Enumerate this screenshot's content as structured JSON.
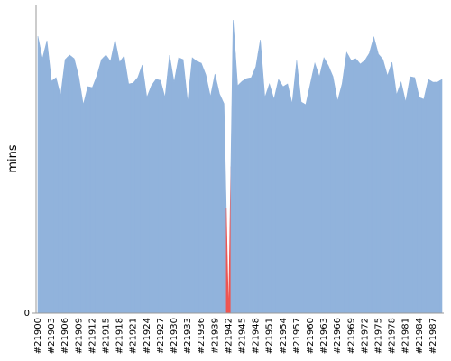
{
  "chart_data": {
    "type": "area",
    "y_label": "mins",
    "categories": [
      "#21900",
      null,
      null,
      "#21903",
      null,
      null,
      "#21906",
      null,
      null,
      "#21909",
      null,
      null,
      "#21912",
      null,
      null,
      "#21915",
      null,
      null,
      "#21918",
      null,
      null,
      "#21921",
      null,
      null,
      "#21924",
      null,
      null,
      "#21927",
      null,
      null,
      "#21930",
      null,
      null,
      "#21933",
      null,
      null,
      "#21936",
      null,
      null,
      "#21939",
      null,
      null,
      "#21942",
      null,
      null,
      "#21945",
      null,
      null,
      "#21948",
      null,
      null,
      "#21951",
      null,
      null,
      "#21954",
      null,
      null,
      "#21957",
      null,
      null,
      "#21960",
      null,
      null,
      "#21963",
      null,
      null,
      "#21966",
      null,
      null,
      "#21969",
      null,
      null,
      "#21972",
      null,
      null,
      "#21975",
      null,
      null,
      "#21978",
      null,
      null,
      "#21981",
      null,
      null,
      "#21984",
      null,
      null,
      "#21987",
      null,
      null
    ],
    "values": [
      30.7,
      28.2,
      30.2,
      25.7,
      26.1,
      24.1,
      28.1,
      28.6,
      28.2,
      26.2,
      23.1,
      25.1,
      25.0,
      26.3,
      28.1,
      28.6,
      27.9,
      30.3,
      27.8,
      28.5,
      25.4,
      25.5,
      26.1,
      27.5,
      23.9,
      25.2,
      25.9,
      25.8,
      23.9,
      28.6,
      25.6,
      28.3,
      28.1,
      23.4,
      28.3,
      27.9,
      27.7,
      26.4,
      24.0,
      26.5,
      24.3,
      23.2,
      0,
      32.5,
      25.2,
      25.7,
      26.0,
      26.1,
      27.3,
      30.3,
      23.9,
      25.4,
      23.7,
      25.9,
      25.1,
      25.4,
      23.2,
      28.0,
      23.4,
      23.1,
      25.4,
      27.7,
      26.2,
      28.3,
      27.4,
      26.2,
      23.5,
      25.4,
      28.9,
      28.0,
      28.2,
      27.6,
      28.0,
      28.8,
      30.6,
      28.7,
      28.1,
      26.3,
      27.8,
      24.2,
      25.6,
      23.4,
      26.2,
      26.1,
      23.9,
      23.7,
      25.9,
      25.6,
      25.6,
      25.9
    ],
    "colors": [
      "#91b3dc",
      "#91b3dc",
      "#91b3dc",
      "#91b3dc",
      "#91b3dc",
      "#91b3dc",
      "#91b3dc",
      "#91b3dc",
      "#91b3dc",
      "#91b3dc",
      "#91b3dc",
      "#91b3dc",
      "#91b3dc",
      "#91b3dc",
      "#91b3dc",
      "#91b3dc",
      "#91b3dc",
      "#91b3dc",
      "#91b3dc",
      "#91b3dc",
      "#91b3dc",
      "#91b3dc",
      "#91b3dc",
      "#91b3dc",
      "#91b3dc",
      "#91b3dc",
      "#91b3dc",
      "#91b3dc",
      "#91b3dc",
      "#91b3dc",
      "#91b3dc",
      "#91b3dc",
      "#91b3dc",
      "#91b3dc",
      "#91b3dc",
      "#91b3dc",
      "#91b3dc",
      "#91b3dc",
      "#91b3dc",
      "#91b3dc",
      "#91b3dc",
      "#91b3dc",
      "#ee5551",
      "#91b3dc",
      "#91b3dc",
      "#91b3dc",
      "#91b3dc",
      "#91b3dc",
      "#91b3dc",
      "#91b3dc",
      "#91b3dc",
      "#91b3dc",
      "#91b3dc",
      "#91b3dc",
      "#91b3dc",
      "#91b3dc",
      "#91b3dc",
      "#91b3dc",
      "#91b3dc",
      "#91b3dc",
      "#91b3dc",
      "#91b3dc",
      "#91b3dc",
      "#91b3dc",
      "#91b3dc",
      "#91b3dc",
      "#91b3dc",
      "#91b3dc",
      "#91b3dc",
      "#91b3dc",
      "#91b3dc",
      "#91b3dc",
      "#91b3dc",
      "#91b3dc",
      "#91b3dc",
      "#91b3dc",
      "#91b3dc",
      "#91b3dc",
      "#91b3dc",
      "#91b3dc",
      "#91b3dc",
      "#91b3dc",
      "#91b3dc",
      "#91b3dc",
      "#91b3dc",
      "#91b3dc",
      "#91b3dc",
      "#91b3dc",
      "#91b3dc",
      "#91b3dc"
    ],
    "ylim": [
      0,
      34.2
    ],
    "yticks": [
      0
    ]
  }
}
